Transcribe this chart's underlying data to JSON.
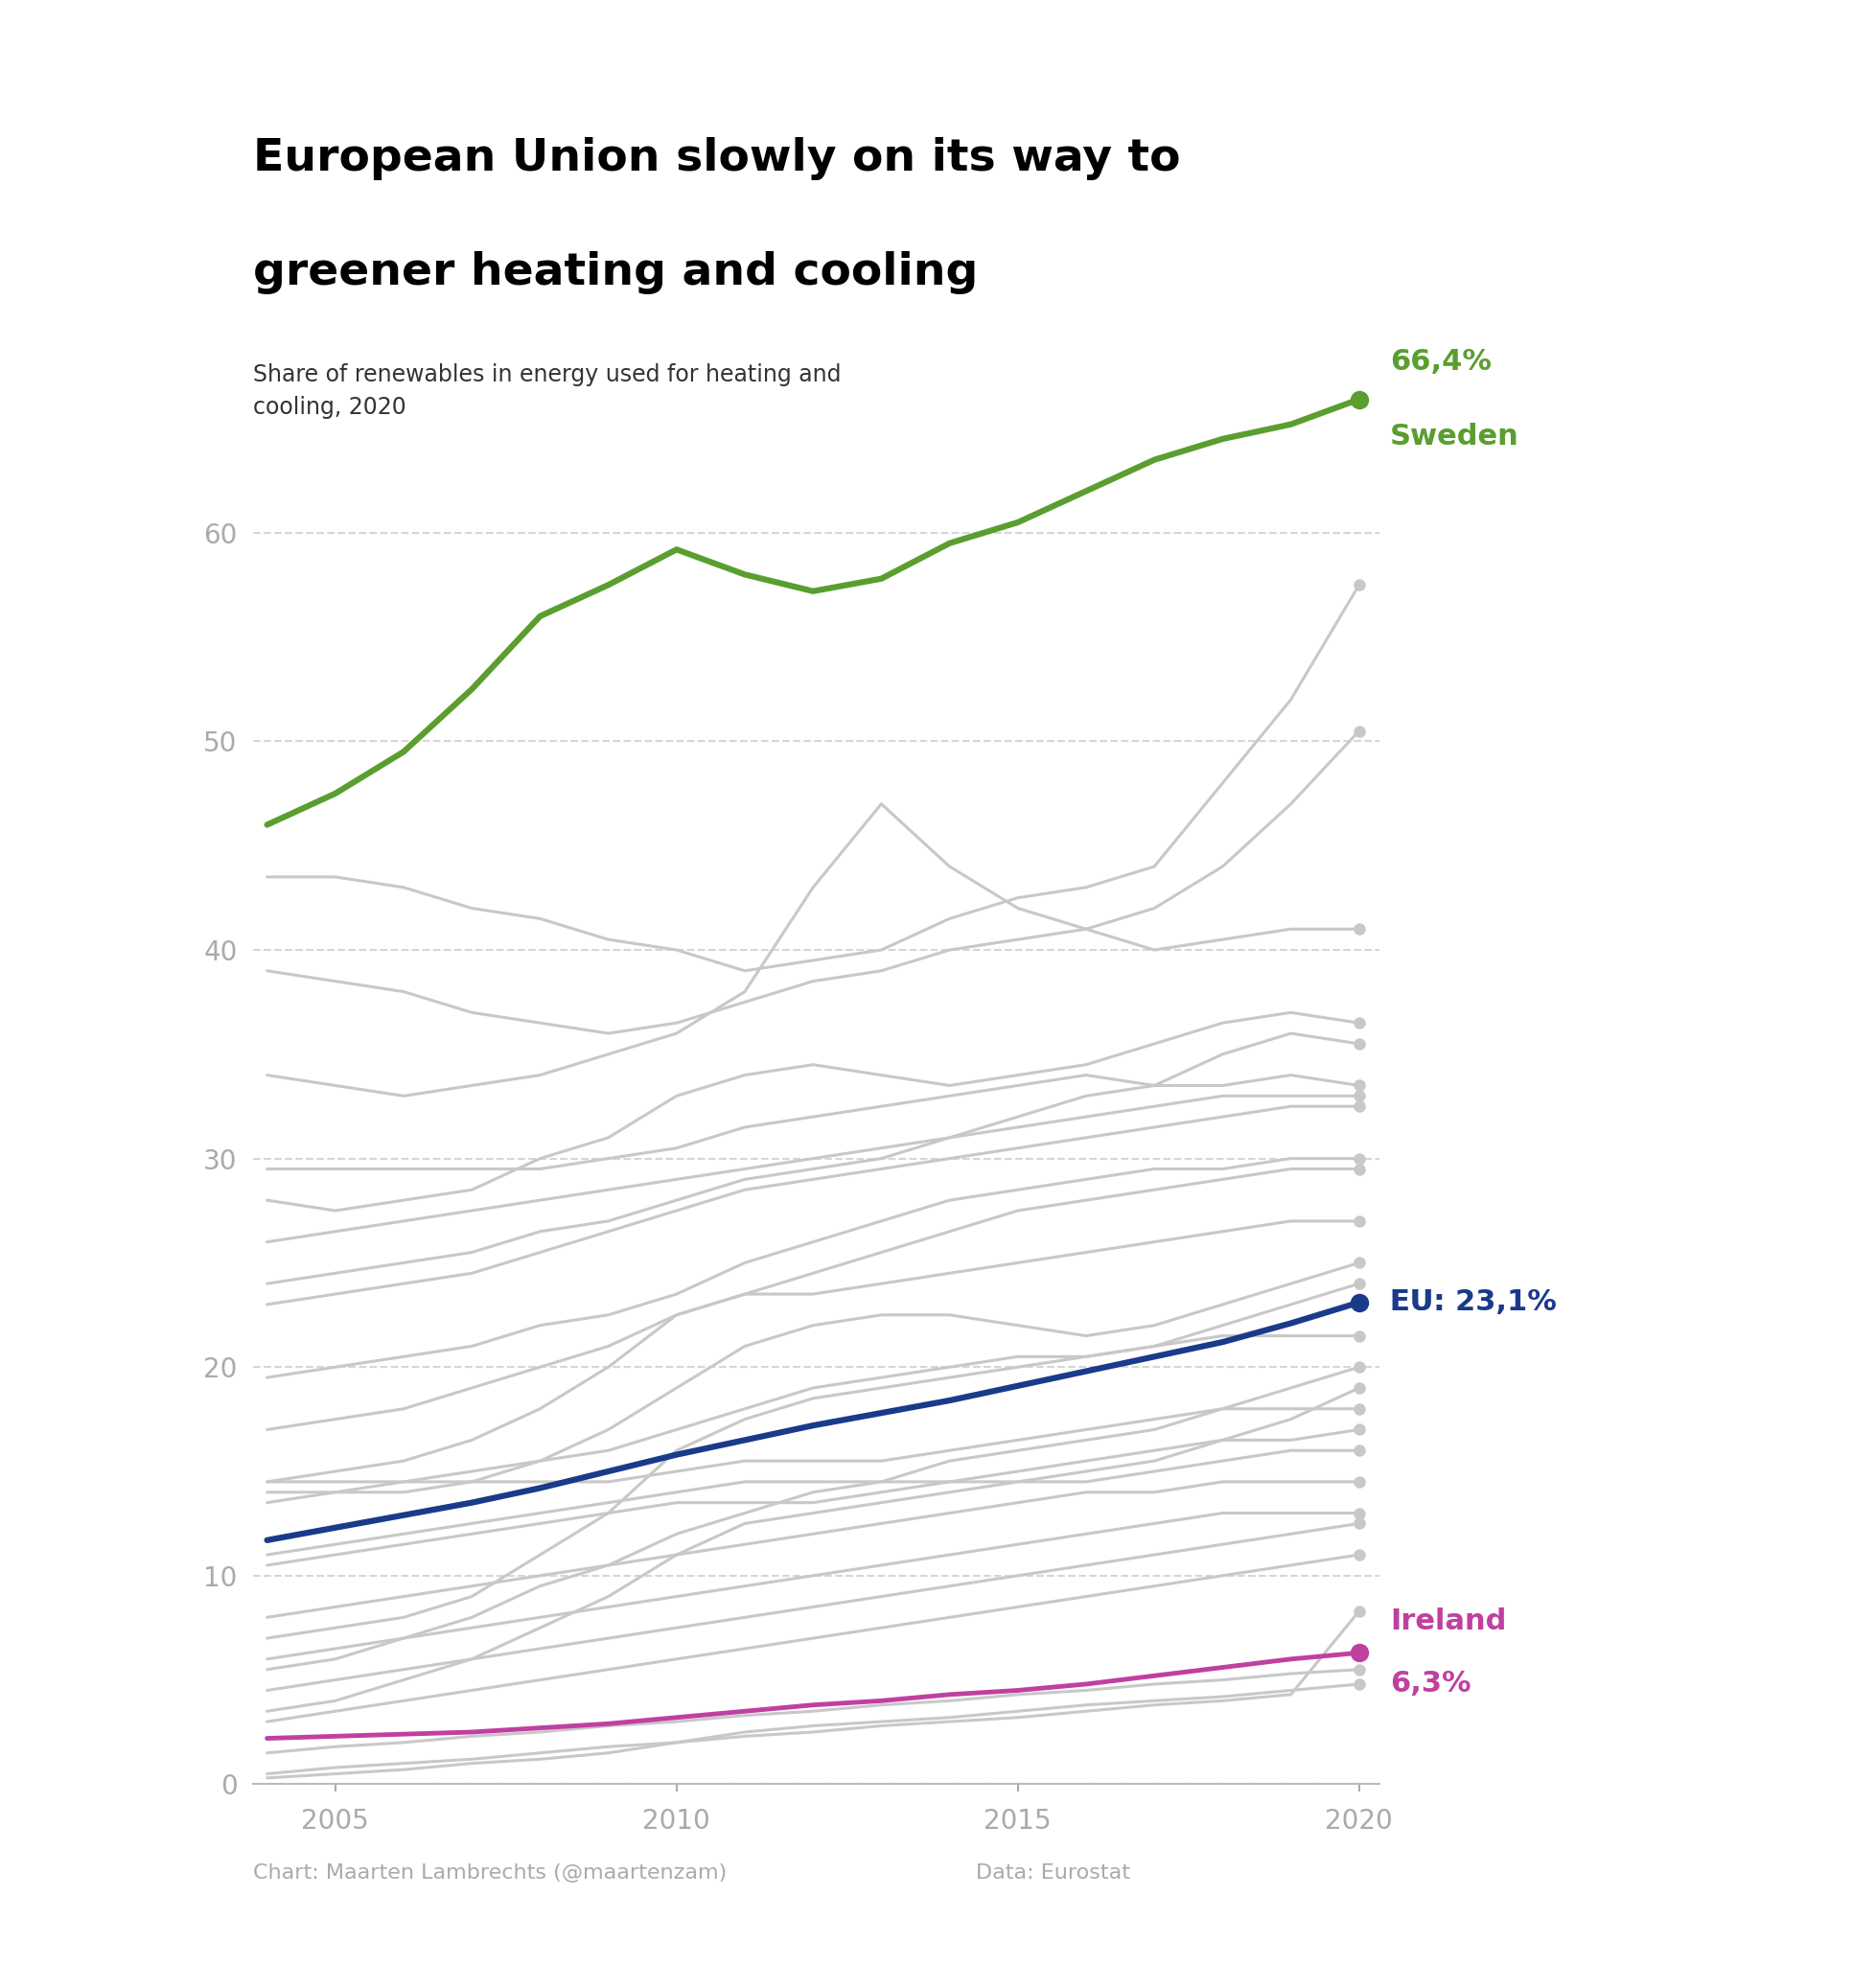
{
  "title_line1": "European Union slowly on its way to",
  "title_line2": "greener heating and cooling",
  "subtitle": "Share of renewables in energy used for heating and\ncooling, 2020",
  "footer_left": "Chart: Maarten Lambrechts (@maartenzam)",
  "footer_right": "Data: Eurostat",
  "years": [
    2004,
    2005,
    2006,
    2007,
    2008,
    2009,
    2010,
    2011,
    2012,
    2013,
    2014,
    2015,
    2016,
    2017,
    2018,
    2019,
    2020
  ],
  "sweden": [
    46.0,
    47.5,
    49.5,
    52.5,
    56.0,
    57.5,
    59.2,
    58.0,
    57.2,
    57.8,
    59.5,
    60.5,
    62.0,
    63.5,
    64.5,
    65.2,
    66.4
  ],
  "eu": [
    11.7,
    12.3,
    12.9,
    13.5,
    14.2,
    15.0,
    15.8,
    16.5,
    17.2,
    17.8,
    18.4,
    19.1,
    19.8,
    20.5,
    21.2,
    22.1,
    23.1
  ],
  "ireland": [
    2.2,
    2.3,
    2.4,
    2.5,
    2.7,
    2.9,
    3.2,
    3.5,
    3.8,
    4.0,
    4.3,
    4.5,
    4.8,
    5.2,
    5.6,
    6.0,
    6.3
  ],
  "grey_lines": [
    [
      43.5,
      43.5,
      43.0,
      42.0,
      41.5,
      40.5,
      40.0,
      39.0,
      39.5,
      40.0,
      41.5,
      42.5,
      43.0,
      44.0,
      48.0,
      52.0,
      57.5
    ],
    [
      39.0,
      38.5,
      38.0,
      37.0,
      36.5,
      36.0,
      36.5,
      37.5,
      38.5,
      39.0,
      40.0,
      40.5,
      41.0,
      42.0,
      44.0,
      47.0,
      50.5
    ],
    [
      34.0,
      33.5,
      33.0,
      33.5,
      34.0,
      35.0,
      36.0,
      38.0,
      43.0,
      47.0,
      44.0,
      42.0,
      41.0,
      40.0,
      40.5,
      41.0,
      41.0
    ],
    [
      28.0,
      27.5,
      28.0,
      28.5,
      30.0,
      31.0,
      33.0,
      34.0,
      34.5,
      34.0,
      33.5,
      34.0,
      34.5,
      35.5,
      36.5,
      37.0,
      36.5
    ],
    [
      24.0,
      24.5,
      25.0,
      25.5,
      26.5,
      27.0,
      28.0,
      29.0,
      29.5,
      30.0,
      31.0,
      32.0,
      33.0,
      33.5,
      35.0,
      36.0,
      35.5
    ],
    [
      29.5,
      29.5,
      29.5,
      29.5,
      29.5,
      30.0,
      30.5,
      31.5,
      32.0,
      32.5,
      33.0,
      33.5,
      34.0,
      33.5,
      33.5,
      34.0,
      33.5
    ],
    [
      26.0,
      26.5,
      27.0,
      27.5,
      28.0,
      28.5,
      29.0,
      29.5,
      30.0,
      30.5,
      31.0,
      31.5,
      32.0,
      32.5,
      33.0,
      33.0,
      33.0
    ],
    [
      23.0,
      23.5,
      24.0,
      24.5,
      25.5,
      26.5,
      27.5,
      28.5,
      29.0,
      29.5,
      30.0,
      30.5,
      31.0,
      31.5,
      32.0,
      32.5,
      32.5
    ],
    [
      19.5,
      20.0,
      20.5,
      21.0,
      22.0,
      22.5,
      23.5,
      25.0,
      26.0,
      27.0,
      28.0,
      28.5,
      29.0,
      29.5,
      29.5,
      30.0,
      30.0
    ],
    [
      17.0,
      17.5,
      18.0,
      19.0,
      20.0,
      21.0,
      22.5,
      23.5,
      24.5,
      25.5,
      26.5,
      27.5,
      28.0,
      28.5,
      29.0,
      29.5,
      29.5
    ],
    [
      14.5,
      15.0,
      15.5,
      16.5,
      18.0,
      20.0,
      22.5,
      23.5,
      23.5,
      24.0,
      24.5,
      25.0,
      25.5,
      26.0,
      26.5,
      27.0,
      27.0
    ],
    [
      14.0,
      14.0,
      14.0,
      14.5,
      15.5,
      17.0,
      19.0,
      21.0,
      22.0,
      22.5,
      22.5,
      22.0,
      21.5,
      22.0,
      23.0,
      24.0,
      25.0
    ],
    [
      7.0,
      7.5,
      8.0,
      9.0,
      11.0,
      13.0,
      16.0,
      17.5,
      18.5,
      19.0,
      19.5,
      20.0,
      20.5,
      21.0,
      22.0,
      23.0,
      24.0
    ],
    [
      13.5,
      14.0,
      14.5,
      15.0,
      15.5,
      16.0,
      17.0,
      18.0,
      19.0,
      19.5,
      20.0,
      20.5,
      20.5,
      21.0,
      21.5,
      21.5,
      21.5
    ],
    [
      5.5,
      6.0,
      7.0,
      8.0,
      9.5,
      10.5,
      12.0,
      13.0,
      14.0,
      14.5,
      15.5,
      16.0,
      16.5,
      17.0,
      18.0,
      19.0,
      20.0
    ],
    [
      3.5,
      4.0,
      5.0,
      6.0,
      7.5,
      9.0,
      11.0,
      12.5,
      13.0,
      13.5,
      14.0,
      14.5,
      15.0,
      15.5,
      16.5,
      17.5,
      19.0
    ],
    [
      14.5,
      14.5,
      14.5,
      14.5,
      14.5,
      14.5,
      15.0,
      15.5,
      15.5,
      15.5,
      16.0,
      16.5,
      17.0,
      17.5,
      18.0,
      18.0,
      18.0
    ],
    [
      10.5,
      11.0,
      11.5,
      12.0,
      12.5,
      13.0,
      13.5,
      13.5,
      13.5,
      14.0,
      14.5,
      15.0,
      15.5,
      16.0,
      16.5,
      16.5,
      17.0
    ],
    [
      11.0,
      11.5,
      12.0,
      12.5,
      13.0,
      13.5,
      14.0,
      14.5,
      14.5,
      14.5,
      14.5,
      14.5,
      14.5,
      15.0,
      15.5,
      16.0,
      16.0
    ],
    [
      8.0,
      8.5,
      9.0,
      9.5,
      10.0,
      10.5,
      11.0,
      11.5,
      12.0,
      12.5,
      13.0,
      13.5,
      14.0,
      14.0,
      14.5,
      14.5,
      14.5
    ],
    [
      6.0,
      6.5,
      7.0,
      7.5,
      8.0,
      8.5,
      9.0,
      9.5,
      10.0,
      10.5,
      11.0,
      11.5,
      12.0,
      12.5,
      13.0,
      13.0,
      13.0
    ],
    [
      4.5,
      5.0,
      5.5,
      6.0,
      6.5,
      7.0,
      7.5,
      8.0,
      8.5,
      9.0,
      9.5,
      10.0,
      10.5,
      11.0,
      11.5,
      12.0,
      12.5
    ],
    [
      3.0,
      3.5,
      4.0,
      4.5,
      5.0,
      5.5,
      6.0,
      6.5,
      7.0,
      7.5,
      8.0,
      8.5,
      9.0,
      9.5,
      10.0,
      10.5,
      11.0
    ],
    [
      0.5,
      0.8,
      1.0,
      1.2,
      1.5,
      1.8,
      2.0,
      2.3,
      2.5,
      2.8,
      3.0,
      3.2,
      3.5,
      3.8,
      4.0,
      4.3,
      8.3
    ],
    [
      1.5,
      1.8,
      2.0,
      2.3,
      2.5,
      2.8,
      3.0,
      3.3,
      3.5,
      3.8,
      4.0,
      4.3,
      4.5,
      4.8,
      5.0,
      5.3,
      5.5
    ],
    [
      0.3,
      0.5,
      0.7,
      1.0,
      1.2,
      1.5,
      2.0,
      2.5,
      2.8,
      3.0,
      3.2,
      3.5,
      3.8,
      4.0,
      4.2,
      4.5,
      4.8
    ]
  ],
  "sweden_color": "#5a9e2f",
  "eu_color": "#1a3a8a",
  "ireland_color": "#c040a0",
  "grey_color": "#c8c8c8",
  "background_color": "#ffffff",
  "title_fontsize": 34,
  "subtitle_fontsize": 17,
  "label_fontsize": 22,
  "tick_fontsize": 20,
  "footer_fontsize": 16,
  "ylim": [
    0,
    70
  ],
  "yticks": [
    0,
    10,
    20,
    30,
    40,
    50,
    60
  ],
  "xticks": [
    2005,
    2010,
    2015,
    2020
  ]
}
